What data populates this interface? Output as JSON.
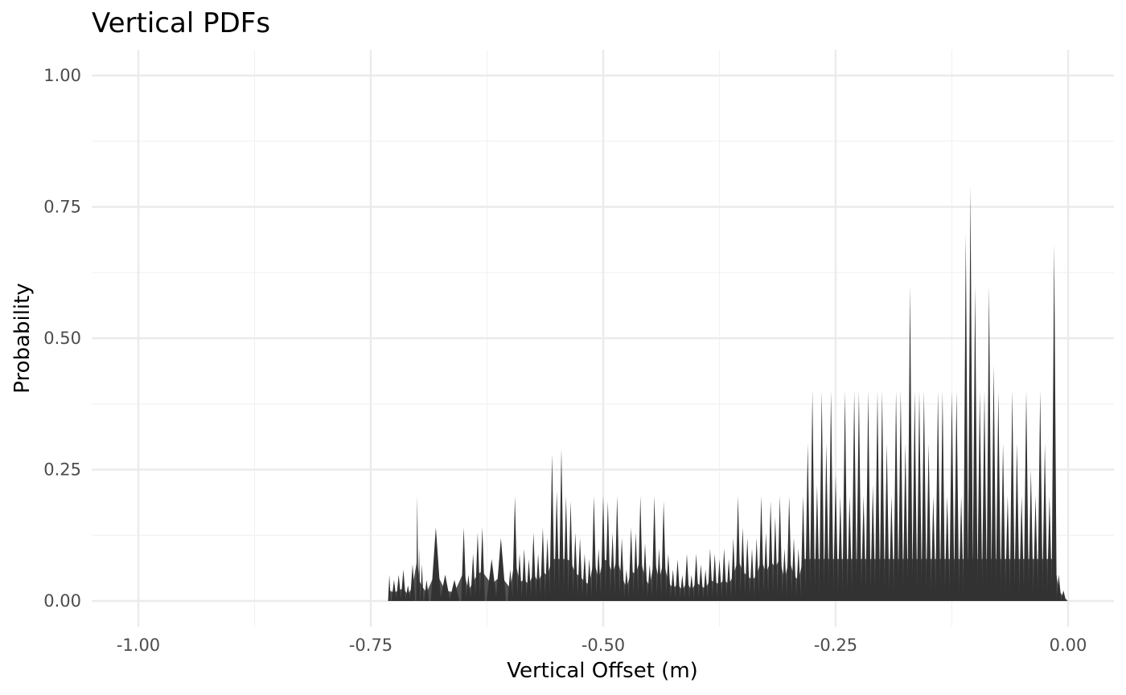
{
  "chart_data": {
    "type": "area",
    "title": "Vertical PDFs",
    "xlabel": "Vertical Offset (m)",
    "ylabel": "Probability",
    "xlim": [
      -1.0,
      0.0
    ],
    "ylim": [
      0.0,
      1.0
    ],
    "x_ticks": [
      -1.0,
      -0.75,
      -0.5,
      -0.25,
      0.0
    ],
    "x_tick_labels": [
      "-1.00",
      "-0.75",
      "-0.50",
      "-0.25",
      "0.00"
    ],
    "y_ticks": [
      0.0,
      0.25,
      0.5,
      0.75,
      1.0
    ],
    "y_tick_labels": [
      "0.00",
      "0.25",
      "0.50",
      "0.75",
      "1.00"
    ],
    "grid": true,
    "fill_color": "#333333",
    "series": [
      {
        "name": "Vertical PDFs",
        "x": [
          -0.73,
          -0.725,
          -0.72,
          -0.715,
          -0.71,
          -0.705,
          -0.7,
          -0.698,
          -0.695,
          -0.69,
          -0.68,
          -0.67,
          -0.66,
          -0.65,
          -0.645,
          -0.64,
          -0.635,
          -0.63,
          -0.62,
          -0.61,
          -0.6,
          -0.595,
          -0.59,
          -0.585,
          -0.58,
          -0.575,
          -0.57,
          -0.565,
          -0.56,
          -0.555,
          -0.55,
          -0.545,
          -0.54,
          -0.535,
          -0.53,
          -0.525,
          -0.52,
          -0.515,
          -0.51,
          -0.505,
          -0.5,
          -0.495,
          -0.49,
          -0.485,
          -0.48,
          -0.475,
          -0.47,
          -0.465,
          -0.46,
          -0.455,
          -0.45,
          -0.445,
          -0.44,
          -0.435,
          -0.43,
          -0.425,
          -0.42,
          -0.415,
          -0.41,
          -0.405,
          -0.4,
          -0.395,
          -0.39,
          -0.385,
          -0.38,
          -0.375,
          -0.37,
          -0.365,
          -0.36,
          -0.355,
          -0.35,
          -0.345,
          -0.34,
          -0.335,
          -0.33,
          -0.325,
          -0.32,
          -0.315,
          -0.31,
          -0.305,
          -0.3,
          -0.295,
          -0.29,
          -0.285,
          -0.28,
          -0.275,
          -0.27,
          -0.265,
          -0.26,
          -0.255,
          -0.25,
          -0.245,
          -0.24,
          -0.235,
          -0.23,
          -0.225,
          -0.22,
          -0.215,
          -0.21,
          -0.205,
          -0.2,
          -0.195,
          -0.19,
          -0.185,
          -0.18,
          -0.175,
          -0.17,
          -0.165,
          -0.16,
          -0.155,
          -0.15,
          -0.145,
          -0.14,
          -0.135,
          -0.13,
          -0.125,
          -0.12,
          -0.115,
          -0.11,
          -0.105,
          -0.1,
          -0.095,
          -0.09,
          -0.085,
          -0.08,
          -0.075,
          -0.07,
          -0.065,
          -0.06,
          -0.055,
          -0.05,
          -0.045,
          -0.04,
          -0.035,
          -0.03,
          -0.025,
          -0.02,
          -0.015,
          -0.01,
          -0.005,
          0.0
        ],
        "y": [
          0.05,
          0.04,
          0.05,
          0.06,
          0.03,
          0.07,
          0.2,
          0.1,
          0.07,
          0.04,
          0.14,
          0.05,
          0.04,
          0.14,
          0.05,
          0.09,
          0.13,
          0.14,
          0.08,
          0.12,
          0.06,
          0.2,
          0.09,
          0.1,
          0.08,
          0.13,
          0.09,
          0.14,
          0.12,
          0.28,
          0.21,
          0.29,
          0.2,
          0.19,
          0.13,
          0.12,
          0.09,
          0.08,
          0.2,
          0.1,
          0.2,
          0.19,
          0.13,
          0.2,
          0.12,
          0.06,
          0.14,
          0.13,
          0.2,
          0.11,
          0.07,
          0.2,
          0.1,
          0.19,
          0.09,
          0.06,
          0.08,
          0.05,
          0.09,
          0.05,
          0.09,
          0.07,
          0.06,
          0.1,
          0.09,
          0.08,
          0.1,
          0.08,
          0.12,
          0.2,
          0.14,
          0.12,
          0.1,
          0.12,
          0.2,
          0.13,
          0.19,
          0.16,
          0.2,
          0.1,
          0.2,
          0.12,
          0.1,
          0.2,
          0.3,
          0.4,
          0.22,
          0.4,
          0.3,
          0.4,
          0.24,
          0.2,
          0.4,
          0.2,
          0.4,
          0.4,
          0.2,
          0.4,
          0.22,
          0.4,
          0.4,
          0.3,
          0.2,
          0.4,
          0.4,
          0.3,
          0.6,
          0.4,
          0.4,
          0.4,
          0.3,
          0.2,
          0.4,
          0.4,
          0.2,
          0.4,
          0.4,
          0.2,
          0.7,
          0.79,
          0.6,
          0.4,
          0.4,
          0.6,
          0.45,
          0.4,
          0.3,
          0.2,
          0.4,
          0.3,
          0.2,
          0.4,
          0.25,
          0.2,
          0.4,
          0.3,
          0.2,
          0.68,
          0.05,
          0.02,
          0.0
        ]
      }
    ]
  }
}
